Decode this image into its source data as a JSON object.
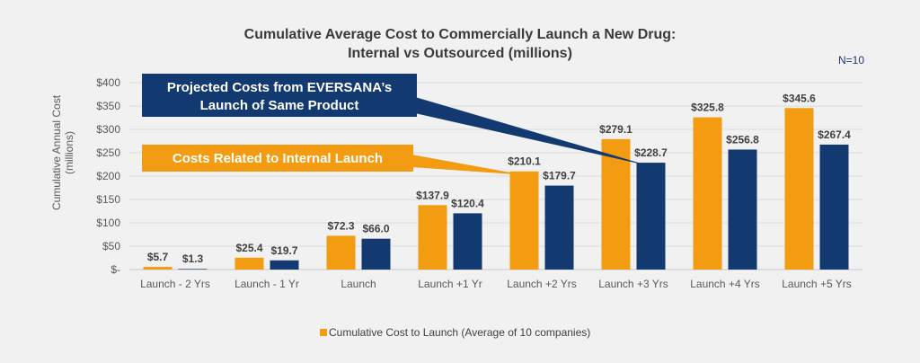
{
  "chart_data": {
    "type": "bar",
    "title_line1": "Cumulative Average Cost to Commercially Launch a New Drug:",
    "title_line2": "Internal vs Outsourced (millions)",
    "sample_note": "N=10",
    "ylabel_line1": "Cumulative Annual Cost",
    "ylabel_line2": "(millions)",
    "ylim": [
      0,
      400
    ],
    "yticks": [
      0,
      50,
      100,
      150,
      200,
      250,
      300,
      350,
      400
    ],
    "ytick_labels": [
      "$-",
      "$50",
      "$100",
      "$150",
      "$200",
      "$250",
      "$300",
      "$350",
      "$400"
    ],
    "grid": true,
    "categories": [
      "Launch - 2 Yrs",
      "Launch - 1 Yr",
      "Launch",
      "Launch +1 Yr",
      "Launch +2 Yrs",
      "Launch +3 Yrs",
      "Launch +4 Yrs",
      "Launch +5 Yrs"
    ],
    "series": [
      {
        "name": "Cumulative Cost to Launch (Average of 10 companies)",
        "color": "#f39c12",
        "values": [
          5.7,
          25.4,
          72.3,
          137.9,
          210.1,
          279.1,
          325.8,
          345.6
        ],
        "labels": [
          "$5.7",
          "$25.4",
          "$72.3",
          "$137.9",
          "$210.1",
          "$279.1",
          "$325.8",
          "$345.6"
        ]
      },
      {
        "color": "#133a70",
        "values": [
          1.3,
          19.7,
          66.0,
          120.4,
          179.7,
          228.7,
          256.8,
          267.4
        ],
        "labels": [
          "$1.3",
          "$19.7",
          "$66.0",
          "$120.4",
          "$179.7",
          "$228.7",
          "$256.8",
          "$267.4"
        ]
      }
    ],
    "annotations": [
      {
        "line1": "Projected Costs from EVERSANA’s",
        "line2": "Launch of Same Product",
        "color": "#133a70",
        "points_to": "Launch +3 Yrs"
      },
      {
        "line1": "Costs Related to Internal Launch",
        "color": "#f39c12",
        "points_to": "Launch +2 Yrs"
      }
    ],
    "legend_position": "bottom"
  }
}
